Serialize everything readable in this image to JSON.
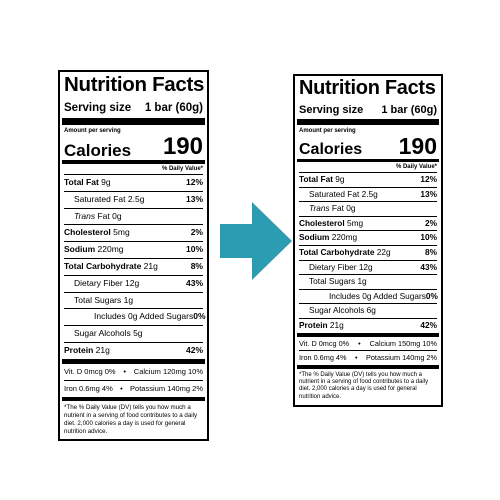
{
  "colors": {
    "arrow": "#2c9cb2"
  },
  "labels": [
    {
      "title": "Nutrition Facts",
      "serving_label": "Serving size",
      "serving_value": "1 bar (60g)",
      "amount_per_serving": "Amount per serving",
      "calories_label": "Calories",
      "calories_value": "190",
      "dv_header": "% Daily Value*",
      "rows": [
        {
          "label": "Total Fat",
          "amount": "9g",
          "dv": "12%"
        },
        {
          "label": "Saturated Fat",
          "amount": "2.5g",
          "dv": "13%"
        },
        {
          "label": "Trans",
          "amount": "Fat 0g",
          "dv": ""
        },
        {
          "label": "Cholesterol",
          "amount": "5mg",
          "dv": "2%"
        },
        {
          "label": "Sodium",
          "amount": "220mg",
          "dv": "10%"
        },
        {
          "label": "Total Carbohydrate",
          "amount": "21g",
          "dv": "8%"
        },
        {
          "label": "Dietary Fiber",
          "amount": "12g",
          "dv": "43%"
        },
        {
          "label": "Total Sugars",
          "amount": "1g",
          "dv": ""
        },
        {
          "label": "Includes 0g Added Sugars",
          "amount": "",
          "dv": "0%"
        },
        {
          "label": "Sugar Alcohols",
          "amount": "5g",
          "dv": ""
        },
        {
          "label": "Protein",
          "amount": "21g",
          "dv": "42%"
        }
      ],
      "vitamins": [
        {
          "left": "Vit. D 0mcg 0%",
          "right": "Calcium 120mg 10%"
        },
        {
          "left": "Iron 0.6mg 4%",
          "right": "Potassium 140mg 2%"
        }
      ],
      "footnote": "*The % Daily Value (DV) tells you how much a nutrient in a serving of food contributes to a daily diet. 2,000 calories a day is used for general nutrition advice."
    },
    {
      "title": "Nutrition Facts",
      "serving_label": "Serving size",
      "serving_value": "1 bar (60g)",
      "amount_per_serving": "Amount per serving",
      "calories_label": "Calories",
      "calories_value": "190",
      "dv_header": "% Daily Value*",
      "rows": [
        {
          "label": "Total Fat",
          "amount": "9g",
          "dv": "12%"
        },
        {
          "label": "Saturated Fat",
          "amount": "2.5g",
          "dv": "13%"
        },
        {
          "label": "Trans",
          "amount": "Fat 0g",
          "dv": ""
        },
        {
          "label": "Cholesterol",
          "amount": "5mg",
          "dv": "2%"
        },
        {
          "label": "Sodium",
          "amount": "220mg",
          "dv": "10%"
        },
        {
          "label": "Total Carbohydrate",
          "amount": "22g",
          "dv": "8%"
        },
        {
          "label": "Dietary Fiber",
          "amount": "12g",
          "dv": "43%"
        },
        {
          "label": "Total Sugars",
          "amount": "1g",
          "dv": ""
        },
        {
          "label": "Includes 0g Added Sugars",
          "amount": "",
          "dv": "0%"
        },
        {
          "label": "Sugar Alcohols",
          "amount": "6g",
          "dv": ""
        },
        {
          "label": "Protein",
          "amount": "21g",
          "dv": "42%"
        }
      ],
      "vitamins": [
        {
          "left": "Vit. D 0mcg 0%",
          "right": "Calcium 150mg 10%"
        },
        {
          "left": "Iron 0.6mg 4%",
          "right": "Potassium 140mg 2%"
        }
      ],
      "footnote": "*The % Daily Value (DV) tells you how much a nutrient in a serving of food contributes to a daily diet. 2,000 calories a day is used for general nutrition advice."
    }
  ]
}
